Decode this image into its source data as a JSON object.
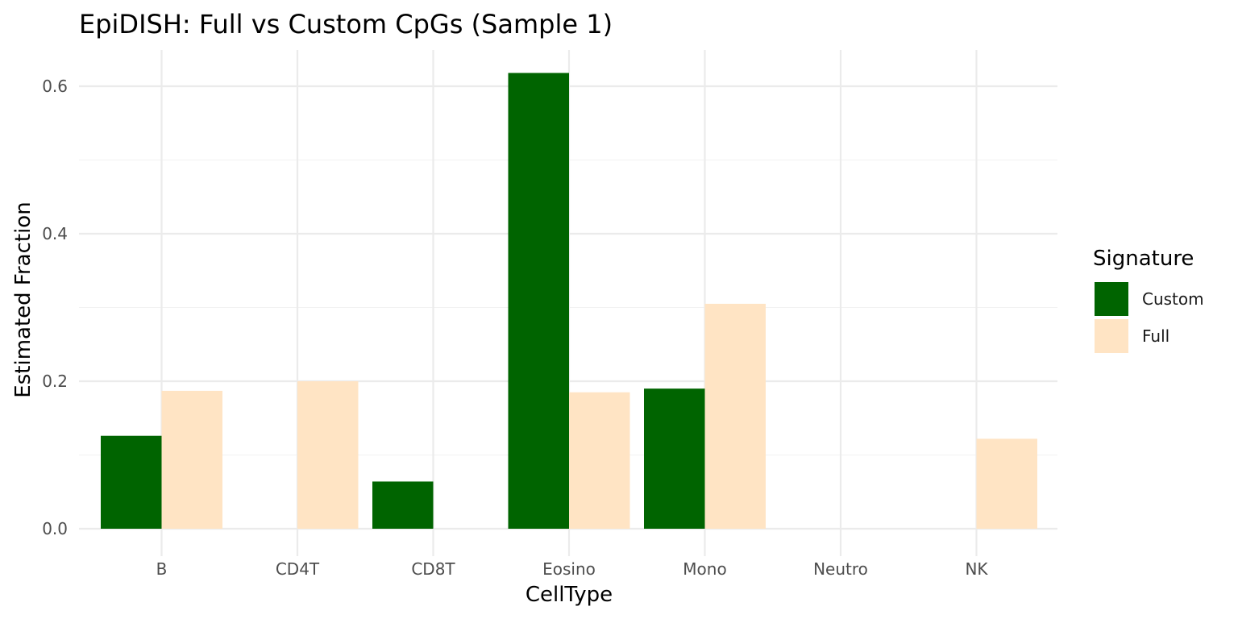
{
  "chart_data": {
    "type": "bar",
    "title": "EpiDISH: Full vs Custom CpGs (Sample 1)",
    "xlabel": "CellType",
    "ylabel": "Estimated Fraction",
    "categories": [
      "B",
      "CD4T",
      "CD8T",
      "Eosino",
      "Mono",
      "Neutro",
      "NK"
    ],
    "series": [
      {
        "name": "Custom",
        "color": "#006400",
        "values": [
          0.126,
          0.0,
          0.064,
          0.618,
          0.19,
          0.0,
          0.0
        ]
      },
      {
        "name": "Full",
        "color": "#FFE4C4",
        "values": [
          0.187,
          0.2,
          0.0,
          0.185,
          0.305,
          0.0,
          0.122
        ]
      }
    ],
    "ylim": [
      0,
      0.65
    ],
    "yticks": [
      0.0,
      0.2,
      0.4,
      0.6
    ],
    "ytick_labels": [
      "0.0",
      "0.2",
      "0.4",
      "0.6"
    ],
    "grid": true,
    "legend": {
      "title": "Signature",
      "position": "right"
    }
  }
}
